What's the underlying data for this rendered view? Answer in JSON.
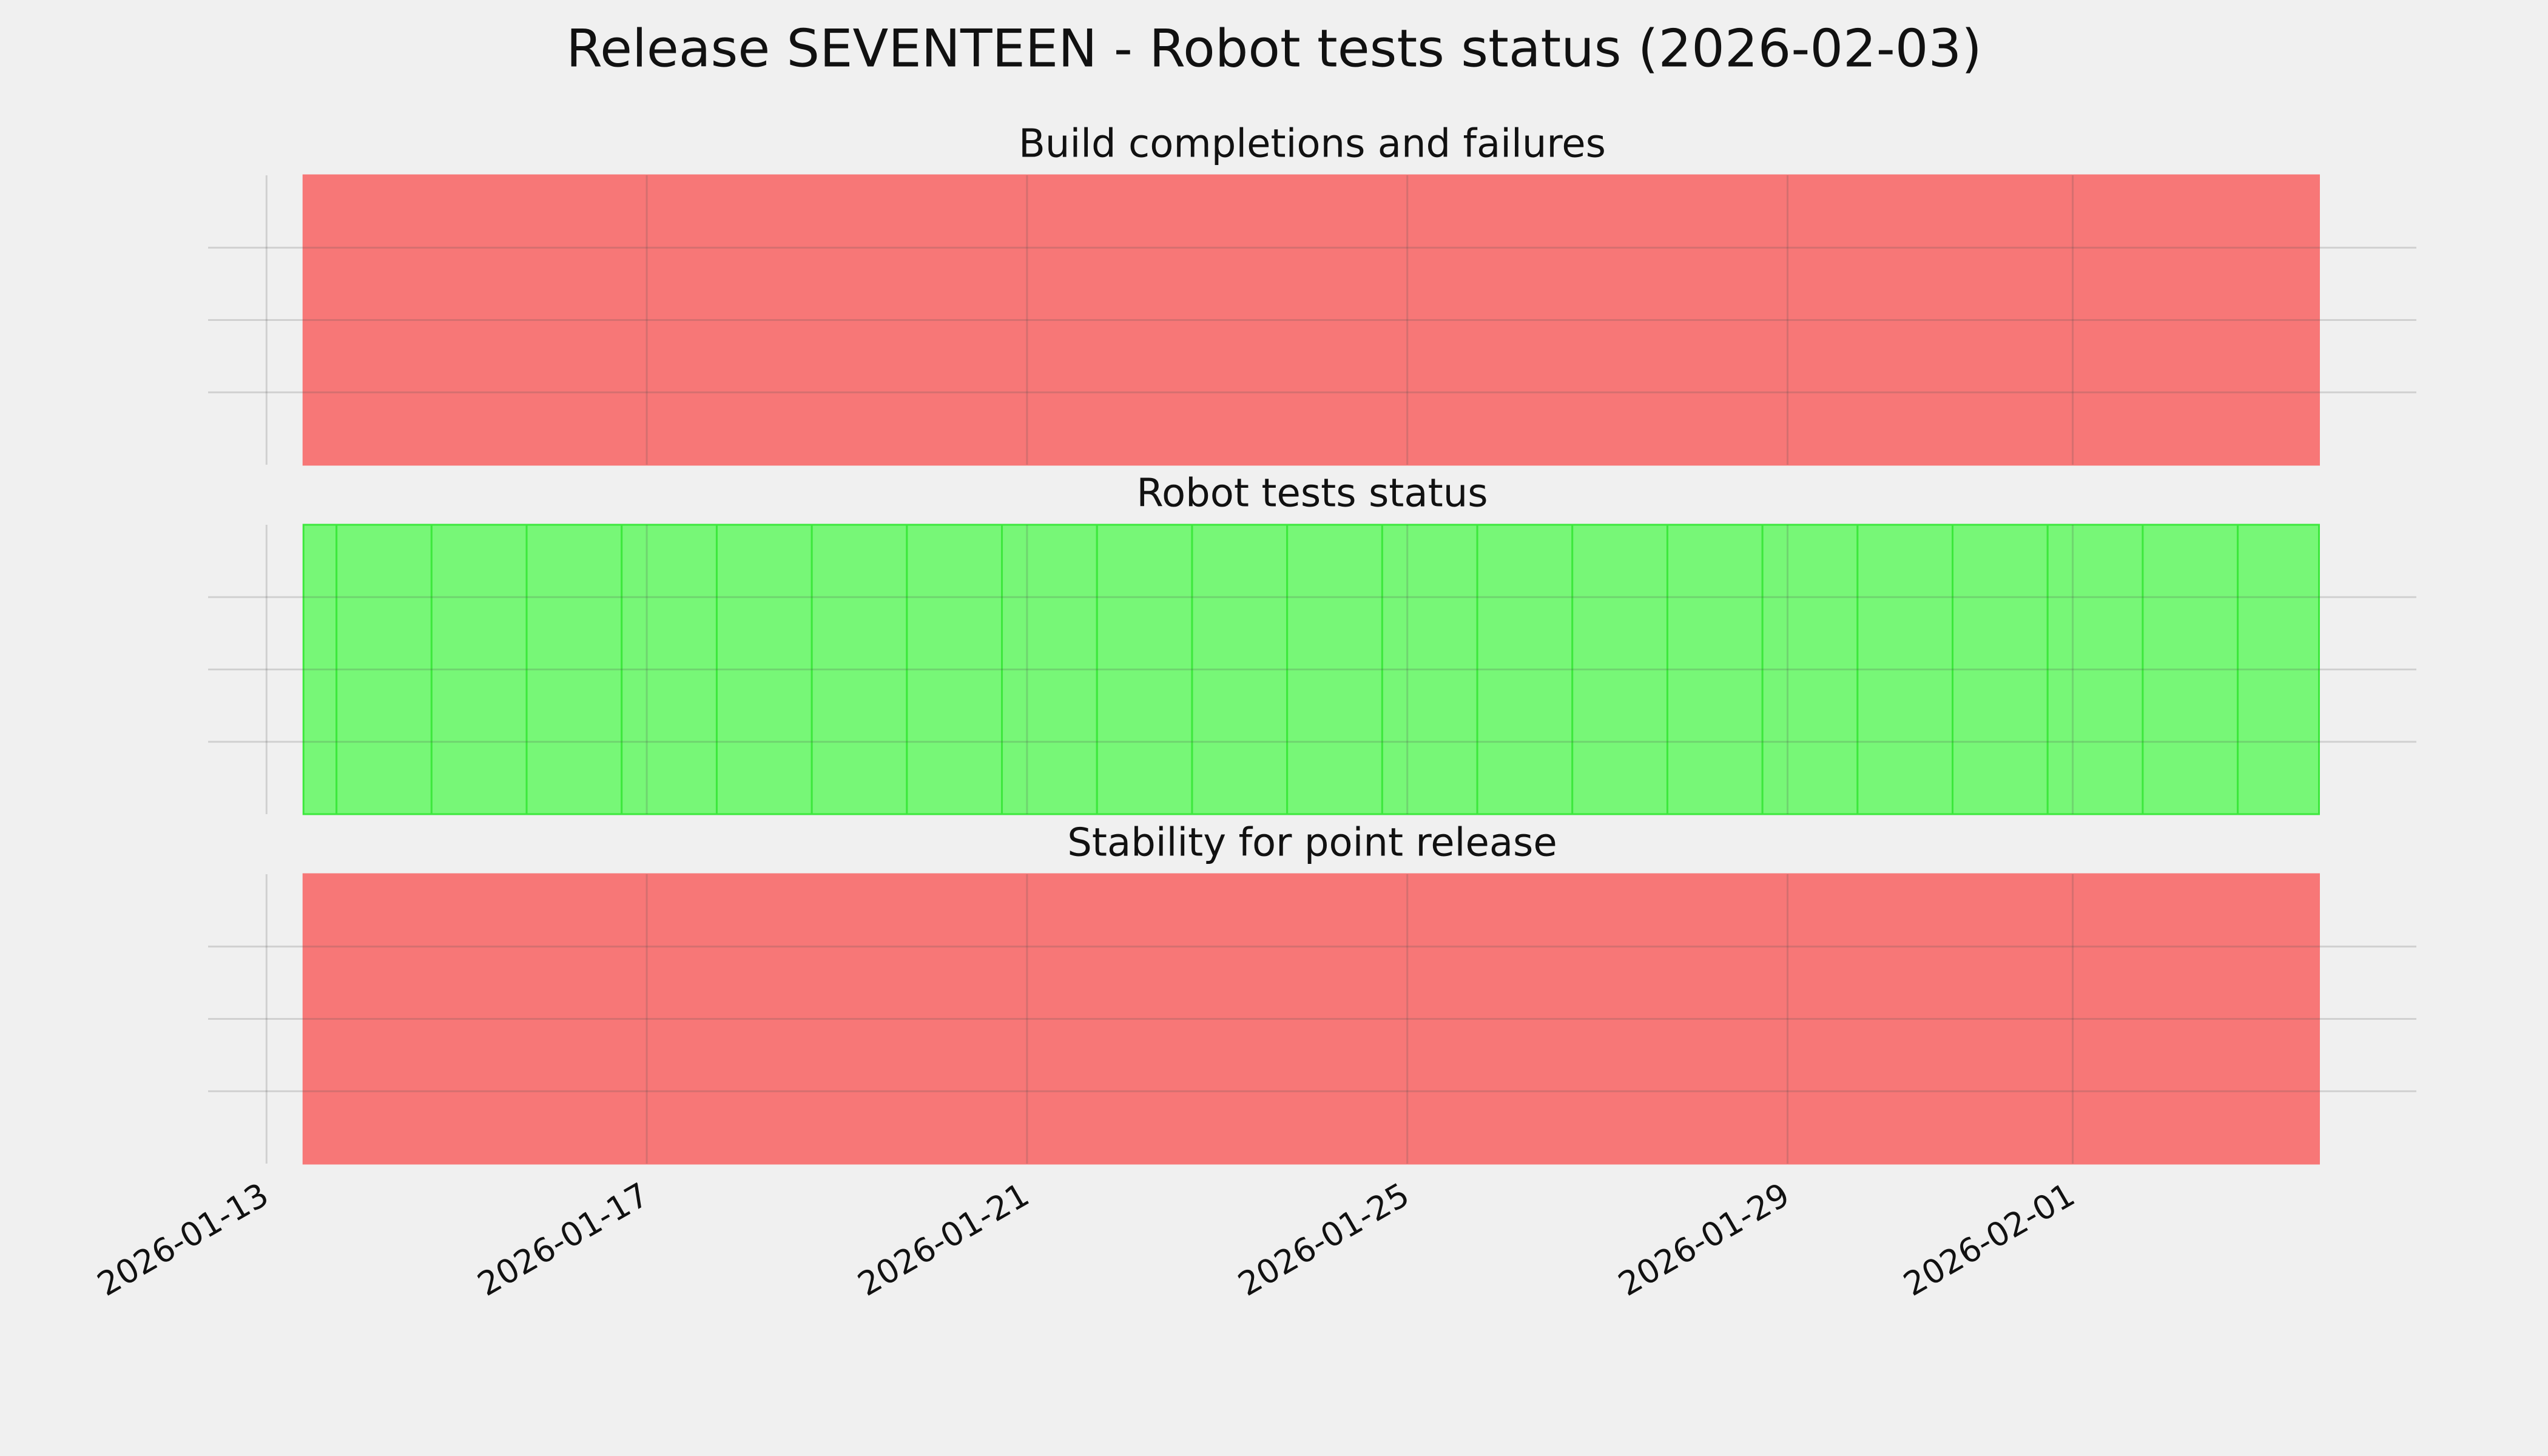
{
  "title": "Release SEVENTEEN - Robot tests status (2026-02-03)",
  "chart_data": [
    {
      "type": "timeline",
      "title": "Build completions and failures",
      "color": "#f77777",
      "edgecolor": "#f77777",
      "edges": [
        "2026-01-13T09:20",
        "2026-02-03T14:10"
      ],
      "ylim": [
        0,
        1
      ],
      "yticks": [
        0.25,
        0.5,
        0.75
      ],
      "grid": true
    },
    {
      "type": "timeline",
      "title": "Robot tests status",
      "color": "#77f777",
      "edgecolor": "#3de83d",
      "edges": [
        "2026-01-13T09:20",
        "2026-01-13T17:40",
        "2026-01-14T17:40",
        "2026-01-15T17:40",
        "2026-01-16T17:40",
        "2026-01-17T17:40",
        "2026-01-18T17:40",
        "2026-01-19T17:40",
        "2026-01-20T17:40",
        "2026-01-21T17:40",
        "2026-01-22T17:40",
        "2026-01-23T17:40",
        "2026-01-24T17:40",
        "2026-01-25T17:40",
        "2026-01-26T17:40",
        "2026-01-27T17:40",
        "2026-01-28T17:40",
        "2026-01-29T17:40",
        "2026-01-30T17:40",
        "2026-01-31T17:40",
        "2026-02-01T17:40",
        "2026-02-02T17:40",
        "2026-02-03T14:10"
      ],
      "ylim": [
        0,
        1
      ],
      "yticks": [
        0.25,
        0.5,
        0.75
      ],
      "grid": true
    },
    {
      "type": "timeline",
      "title": "Stability for point release",
      "color": "#f77777",
      "edgecolor": "#f77777",
      "edges": [
        "2026-01-13T09:20",
        "2026-02-03T14:10"
      ],
      "ylim": [
        0,
        1
      ],
      "yticks": [
        0.25,
        0.5,
        0.75
      ],
      "grid": true,
      "xlim": [
        "2026-01-12T09:15",
        "2026-02-04T14:45"
      ],
      "xticks": [
        "2026-01-13",
        "2026-01-17",
        "2026-01-21",
        "2026-01-25",
        "2026-01-29",
        "2026-02-01"
      ]
    }
  ]
}
